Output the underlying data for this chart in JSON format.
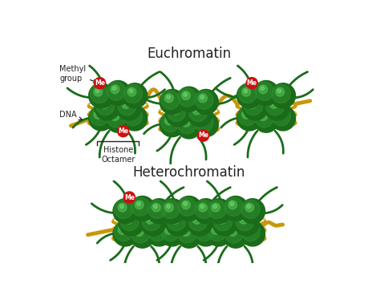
{
  "title_euchromatin": "Euchromatin",
  "title_heterochromatin": "Heterochromatin",
  "title_fontsize": 12,
  "dna_color": "#c8980a",
  "histone_dark": "#1a6b1a",
  "histone_mid": "#2e8b2e",
  "histone_light": "#4db84d",
  "histone_highlight": "#7dd87d",
  "methyl_color": "#cc1111",
  "methyl_text": "Me",
  "label_methyl": "Methyl\ngroup",
  "label_dna": "DNA",
  "label_histone": "Histone\nOctamer",
  "ann_color": "#222222",
  "label_fontsize": 7.0,
  "tail_color": "#1a6b1a"
}
